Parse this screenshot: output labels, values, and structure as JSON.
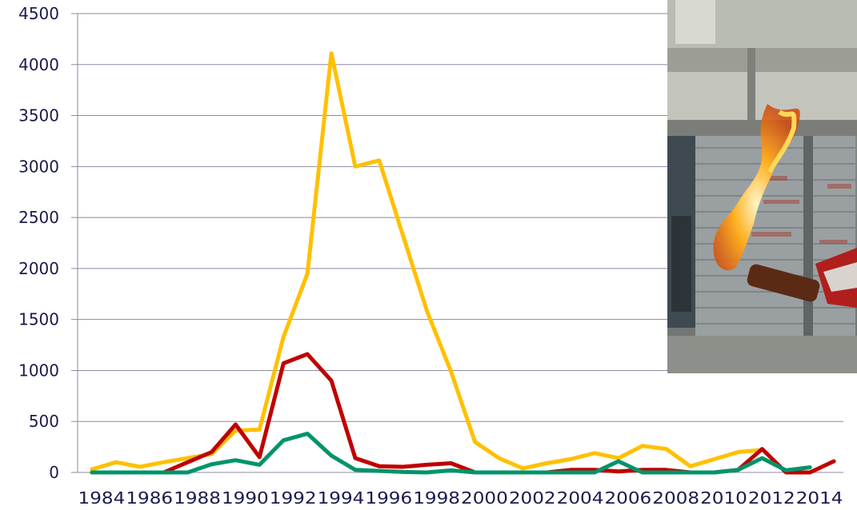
{
  "chart_data": {
    "type": "line",
    "title": "",
    "xlabel": "",
    "ylabel": "",
    "ylim": [
      0,
      4500
    ],
    "yticks": [
      0,
      500,
      1000,
      1500,
      2000,
      2500,
      3000,
      3500,
      4000,
      4500
    ],
    "grid": true,
    "x": [
      1984,
      1985,
      1986,
      1987,
      1988,
      1989,
      1990,
      1991,
      1992,
      1993,
      1994,
      1995,
      1996,
      1997,
      1998,
      1999,
      2000,
      2001,
      2002,
      2003,
      2004,
      2005,
      2006,
      2007,
      2008,
      2009,
      2010,
      2011,
      2012,
      2013,
      2014,
      2015
    ],
    "xtick_labels": [
      "1984",
      "1986",
      "1988",
      "1990",
      "1992",
      "1994",
      "1996",
      "1998",
      "2000",
      "2002",
      "2004",
      "2006",
      "2008",
      "2010",
      "2012",
      "2014"
    ],
    "series": [
      {
        "color": "#FFC000",
        "values": [
          30,
          100,
          55,
          100,
          140,
          180,
          410,
          420,
          1330,
          1950,
          4110,
          3000,
          3060,
          2320,
          1580,
          990,
          300,
          140,
          40,
          90,
          130,
          190,
          140,
          260,
          230,
          60,
          130,
          200,
          220,
          null,
          null,
          null
        ]
      },
      {
        "color": "#C00000",
        "values": [
          0,
          0,
          0,
          0,
          100,
          200,
          470,
          150,
          1070,
          1160,
          900,
          140,
          60,
          55,
          75,
          90,
          0,
          0,
          0,
          0,
          25,
          25,
          10,
          25,
          25,
          0,
          0,
          25,
          230,
          0,
          0,
          110
        ]
      },
      {
        "color": "#00946A",
        "values": [
          0,
          0,
          0,
          0,
          0,
          80,
          120,
          75,
          315,
          380,
          165,
          25,
          15,
          5,
          0,
          20,
          0,
          0,
          0,
          0,
          0,
          0,
          110,
          0,
          0,
          0,
          0,
          25,
          140,
          20,
          50,
          null
        ]
      }
    ]
  },
  "photo": {
    "description_icon": "molotov-cocktail-photo"
  }
}
